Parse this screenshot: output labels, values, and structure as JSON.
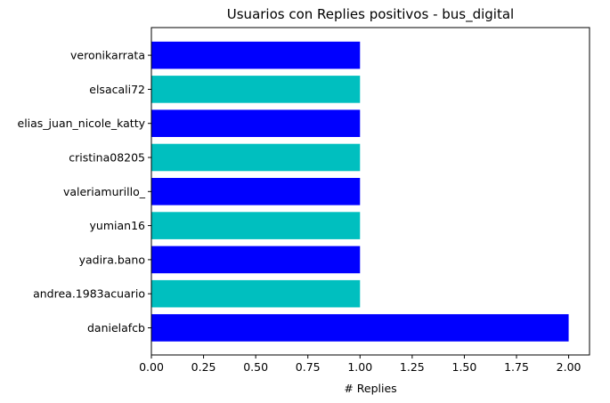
{
  "chart_data": {
    "type": "bar",
    "orientation": "horizontal",
    "title": "Usuarios con Replies positivos - bus_digital",
    "xlabel": "# Replies",
    "ylabel": "",
    "xlim": [
      0,
      2.1
    ],
    "x_ticks": [
      "0.00",
      "0.25",
      "0.50",
      "0.75",
      "1.00",
      "1.25",
      "1.50",
      "1.75",
      "2.00"
    ],
    "grid": false,
    "categories": [
      "danielafcb",
      "andrea.1983acuario",
      "yadira.bano",
      "yumian16",
      "valeriamurillo_",
      "cristina08205",
      "elias_juan_nicole_katty",
      "elsacali72",
      "veronikarrata"
    ],
    "values": [
      2,
      1,
      1,
      1,
      1,
      1,
      1,
      1,
      1
    ],
    "colors": [
      "#0000ff",
      "#00bfbf",
      "#0000ff",
      "#00bfbf",
      "#0000ff",
      "#00bfbf",
      "#0000ff",
      "#00bfbf",
      "#0000ff"
    ]
  }
}
